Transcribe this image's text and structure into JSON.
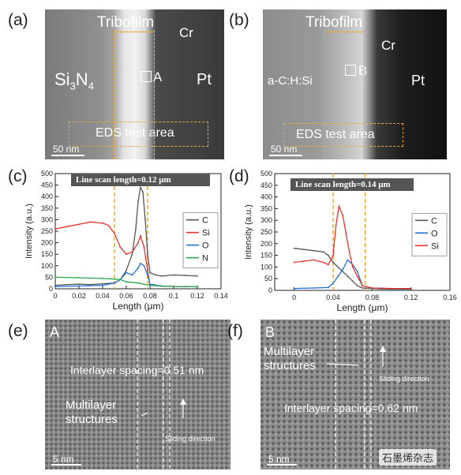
{
  "panels": {
    "a": {
      "label": "(a)",
      "tribofilm": "Tribofilm",
      "cr": "Cr",
      "left_material": "Si3N4",
      "right_material": "Pt",
      "point": "A",
      "eds": "EDS test area",
      "scale": "50 nm"
    },
    "b": {
      "label": "(b)",
      "tribofilm": "Tribofilm",
      "cr": "Cr",
      "left_material": "a-C:H:Si",
      "right_material": "Pt",
      "point": "B",
      "eds": "EDS test area",
      "scale": "50 nm"
    },
    "c": {
      "label": "(c)",
      "banner": "Line scan length=0.12 μm"
    },
    "d": {
      "label": "(d)",
      "banner": "Line scan length=0.14 μm"
    },
    "e": {
      "label": "(e)",
      "corner": "A",
      "spacing": "Interlayer spacing=0.51 nm",
      "multilayer": "Multilayer structures",
      "sliding": "Sliding direction",
      "scale": "5 nm"
    },
    "f": {
      "label": "(f)",
      "corner": "B",
      "spacing": "Interlayer spacing=0.62 nm",
      "multilayer": "Multilayer structures",
      "sliding": "Sliding direction",
      "scale": "5 nm"
    }
  },
  "watermark": "石墨烯杂志",
  "colors": {
    "C": "#555555",
    "Si": "#e8322d",
    "O": "#1f6fd6",
    "N": "#27a84a",
    "guide": "#f0a830"
  },
  "chart_data": [
    {
      "type": "line",
      "xlabel": "Length (μm)",
      "ylabel": "Intensity (a.u.)",
      "xlim": [
        0,
        0.14
      ],
      "ylim": [
        0,
        500
      ],
      "xticks": [
        "0",
        "0.02",
        "0.04",
        "0.06",
        "0.08",
        "0.1",
        "0.12",
        "0.14"
      ],
      "yticks": [
        "0",
        "50",
        "100",
        "150",
        "200",
        "250",
        "300",
        "350",
        "400",
        "450",
        "500"
      ],
      "legend_position": "right",
      "series": [
        {
          "name": "C",
          "color": "#555555",
          "x": [
            0,
            0.01,
            0.02,
            0.03,
            0.04,
            0.05,
            0.055,
            0.06,
            0.065,
            0.068,
            0.07,
            0.072,
            0.074,
            0.076,
            0.078,
            0.08,
            0.085,
            0.09,
            0.1,
            0.11,
            0.12
          ],
          "values": [
            15,
            18,
            20,
            18,
            22,
            25,
            40,
            80,
            150,
            260,
            380,
            440,
            420,
            300,
            150,
            70,
            60,
            55,
            60,
            58,
            55
          ]
        },
        {
          "name": "Si",
          "color": "#e8322d",
          "x": [
            0,
            0.01,
            0.02,
            0.03,
            0.04,
            0.045,
            0.05,
            0.055,
            0.06,
            0.065,
            0.07,
            0.072,
            0.075,
            0.078,
            0.08,
            0.09,
            0.1,
            0.11,
            0.12
          ],
          "values": [
            260,
            270,
            280,
            290,
            285,
            275,
            240,
            180,
            150,
            160,
            200,
            230,
            180,
            80,
            15,
            12,
            10,
            10,
            10
          ]
        },
        {
          "name": "O",
          "color": "#1f6fd6",
          "x": [
            0,
            0.02,
            0.04,
            0.05,
            0.055,
            0.06,
            0.065,
            0.07,
            0.072,
            0.075,
            0.078,
            0.08,
            0.09,
            0.1,
            0.12
          ],
          "values": [
            10,
            12,
            15,
            25,
            40,
            70,
            60,
            90,
            110,
            100,
            60,
            20,
            12,
            10,
            10
          ]
        },
        {
          "name": "N",
          "color": "#27a84a",
          "x": [
            0,
            0.02,
            0.04,
            0.05,
            0.055,
            0.06,
            0.07,
            0.075,
            0.08,
            0.09,
            0.1,
            0.12
          ],
          "values": [
            50,
            48,
            45,
            42,
            40,
            30,
            25,
            20,
            15,
            12,
            10,
            10
          ]
        }
      ],
      "guides_x": [
        0.05,
        0.078
      ]
    },
    {
      "type": "line",
      "xlabel": "Length (μm)",
      "ylabel": "Intensity (a.u.)",
      "xlim": [
        -0.02,
        0.16
      ],
      "ylim": [
        0,
        500
      ],
      "xticks": [
        "0",
        "0.04",
        "0.08",
        "0.12",
        "0.16"
      ],
      "yticks": [
        "0",
        "50",
        "100",
        "150",
        "200",
        "250",
        "300",
        "350",
        "400",
        "450",
        "500"
      ],
      "legend_position": "right",
      "series": [
        {
          "name": "C",
          "color": "#555555",
          "x": [
            0,
            0.01,
            0.02,
            0.03,
            0.035,
            0.04,
            0.045,
            0.05,
            0.055,
            0.06,
            0.065,
            0.07,
            0.08,
            0.09,
            0.1,
            0.12
          ],
          "values": [
            180,
            175,
            170,
            165,
            150,
            120,
            100,
            80,
            60,
            40,
            20,
            10,
            8,
            6,
            5,
            5
          ]
        },
        {
          "name": "O",
          "color": "#1f6fd6",
          "x": [
            0,
            0.02,
            0.035,
            0.04,
            0.045,
            0.05,
            0.055,
            0.06,
            0.065,
            0.07,
            0.08,
            0.1,
            0.12
          ],
          "values": [
            8,
            10,
            12,
            30,
            60,
            90,
            130,
            110,
            80,
            20,
            10,
            8,
            8
          ]
        },
        {
          "name": "Si",
          "color": "#e8322d",
          "x": [
            0,
            0.01,
            0.02,
            0.03,
            0.035,
            0.04,
            0.043,
            0.046,
            0.05,
            0.053,
            0.056,
            0.06,
            0.065,
            0.07,
            0.08,
            0.1,
            0.12
          ],
          "values": [
            120,
            125,
            130,
            120,
            110,
            150,
            280,
            360,
            320,
            250,
            180,
            100,
            60,
            20,
            10,
            8,
            8
          ]
        }
      ],
      "guides_x": [
        0.04,
        0.073
      ]
    }
  ]
}
